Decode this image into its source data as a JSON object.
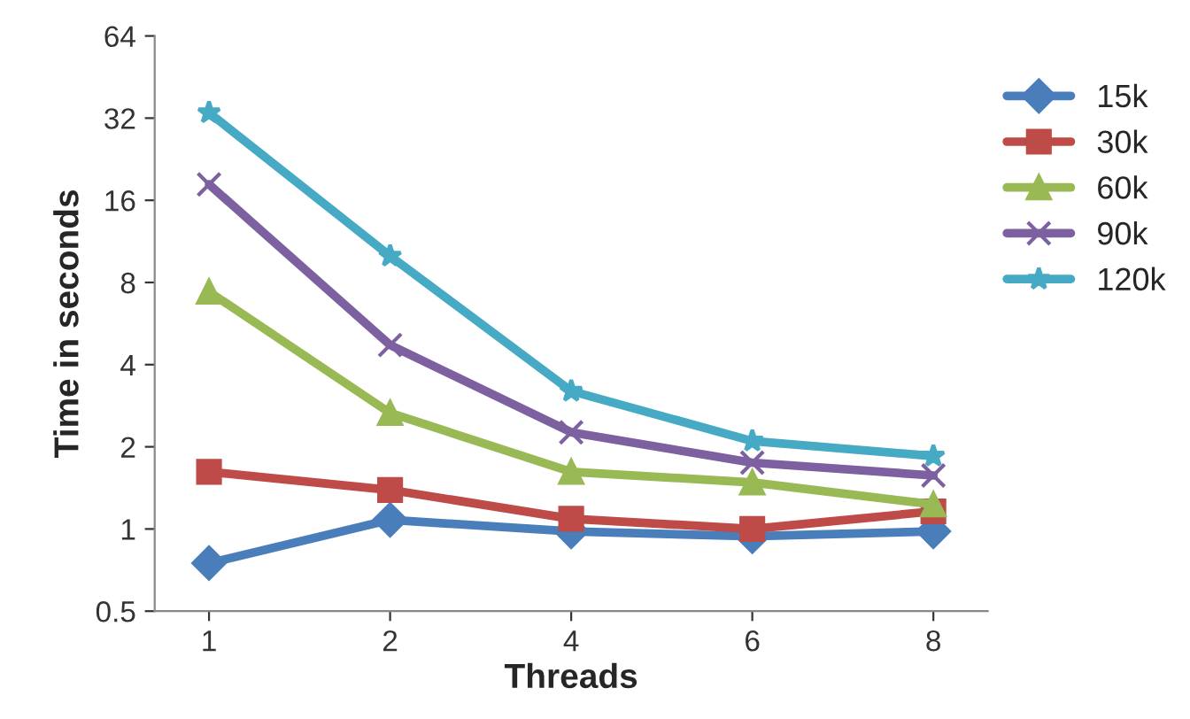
{
  "chart_data": {
    "type": "line",
    "xlabel": "Threads",
    "ylabel": "Time in seconds",
    "categories": [
      "1",
      "2",
      "4",
      "6",
      "8"
    ],
    "series": [
      {
        "name": "15k",
        "color": "#4a7ebb",
        "marker": "diamond",
        "values": [
          0.75,
          1.08,
          0.98,
          0.94,
          0.98
        ]
      },
      {
        "name": "30k",
        "color": "#be4b48",
        "marker": "square",
        "values": [
          1.62,
          1.39,
          1.09,
          1.0,
          1.16
        ]
      },
      {
        "name": "60k",
        "color": "#98b954",
        "marker": "triangle",
        "values": [
          7.4,
          2.66,
          1.62,
          1.48,
          1.23
        ]
      },
      {
        "name": "90k",
        "color": "#7d60a0",
        "marker": "cross",
        "values": [
          18.3,
          4.72,
          2.26,
          1.75,
          1.57
        ]
      },
      {
        "name": "120k",
        "color": "#46aac5",
        "marker": "star",
        "values": [
          33.5,
          10.0,
          3.2,
          2.1,
          1.85
        ]
      }
    ],
    "log": "y",
    "ylim": [
      0.5,
      64
    ],
    "yticks": [
      0.5,
      1,
      2,
      4,
      8,
      16,
      32,
      64
    ],
    "grid": false,
    "legend": "top right"
  }
}
